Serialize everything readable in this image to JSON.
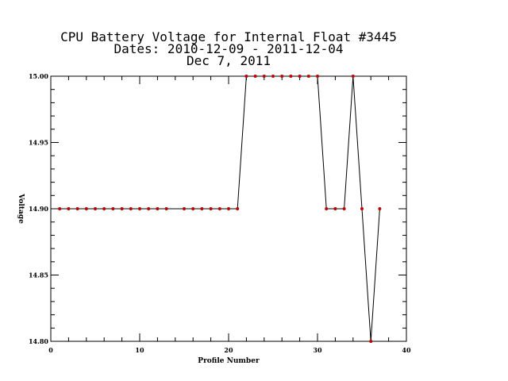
{
  "chart_data": {
    "type": "line",
    "title_lines": [
      "CPU Battery Voltage for Internal Float #3445",
      "Dates:  2010-12-09 -  2011-12-04",
      "Dec  7, 2011"
    ],
    "xlabel": "Profile Number",
    "ylabel": "Voltage",
    "xlim": [
      0,
      40
    ],
    "ylim": [
      14.8,
      15.0
    ],
    "x_ticks": [
      0,
      10,
      20,
      30,
      40
    ],
    "x_tick_labels": [
      "0",
      "10",
      "20",
      "30",
      "40"
    ],
    "y_ticks": [
      14.8,
      14.85,
      14.9,
      14.95,
      15.0
    ],
    "y_tick_labels": [
      "14.80",
      "14.85",
      "14.90",
      "14.95",
      "15.00"
    ],
    "grid": false,
    "line_color": "#000000",
    "marker_color": "#c00000",
    "series": [
      {
        "x": [
          1,
          2,
          3,
          4,
          5,
          6,
          7,
          8,
          9,
          10,
          11,
          12,
          13,
          15,
          16,
          17,
          18,
          19,
          20,
          21,
          22,
          23,
          24,
          25,
          26,
          27,
          28,
          29,
          30,
          31,
          32,
          33,
          34,
          35,
          36,
          37
        ],
        "y": [
          14.9,
          14.9,
          14.9,
          14.9,
          14.9,
          14.9,
          14.9,
          14.9,
          14.9,
          14.9,
          14.9,
          14.9,
          14.9,
          14.9,
          14.9,
          14.9,
          14.9,
          14.9,
          14.9,
          14.9,
          15.0,
          15.0,
          15.0,
          15.0,
          15.0,
          15.0,
          15.0,
          15.0,
          15.0,
          14.9,
          14.9,
          14.9,
          15.0,
          14.9,
          14.8,
          14.9
        ]
      }
    ]
  }
}
